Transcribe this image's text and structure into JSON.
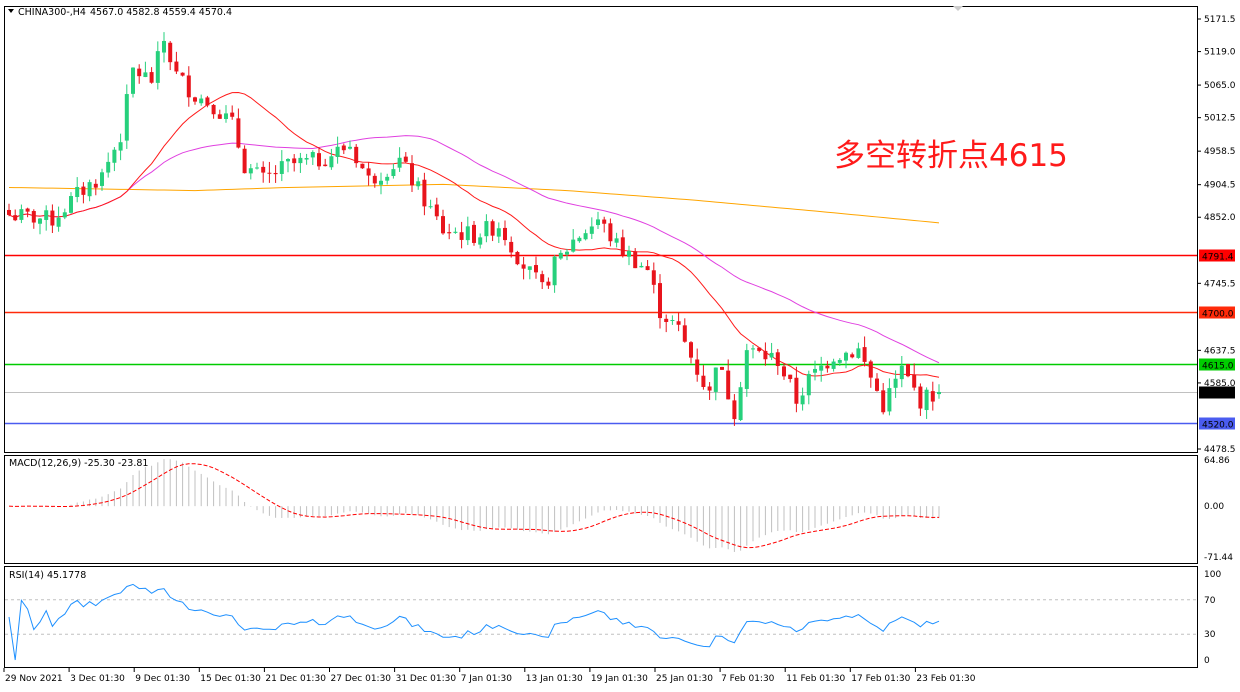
{
  "header": {
    "symbol_label": "CHINA300-,H4",
    "ohlc": "4567.0 4582.8 4559.4 4570.4",
    "menu_icon": "triangle-down-icon"
  },
  "annotation": "多空转折点4615",
  "price_axis": {
    "ticks": [
      "5171.5",
      "5119.0",
      "5065.0",
      "5012.5",
      "4958.5",
      "4904.5",
      "4852.0",
      "4745.5",
      "4637.5",
      "4585.0",
      "4478.5"
    ],
    "tick_values": [
      5171.5,
      5119.0,
      5065.0,
      5012.5,
      4958.5,
      4904.5,
      4852.0,
      4745.5,
      4637.5,
      4585.0,
      4478.5
    ]
  },
  "levels": [
    {
      "value": 4791.4,
      "label": "4791.4",
      "color": "#ff0000"
    },
    {
      "value": 4700.0,
      "label": "4700.0",
      "color": "#ff2a0a"
    },
    {
      "value": 4615.0,
      "label": "4615.0",
      "color": "#00cc00"
    },
    {
      "value": 4570.4,
      "label": "4570.4",
      "color": "#c0c0c0",
      "tag_color": "#000000"
    },
    {
      "value": 4520.0,
      "label": "4520.0",
      "color": "#4a5cf0"
    }
  ],
  "chart_data": {
    "type": "candlestick",
    "bars": 151,
    "close_path": [
      [
        0,
        4856
      ],
      [
        7,
        4848
      ],
      [
        11,
        4888
      ],
      [
        15,
        4920
      ],
      [
        18,
        4984
      ],
      [
        20,
        5089
      ],
      [
        23,
        5073
      ],
      [
        25,
        5137
      ],
      [
        27,
        5081
      ],
      [
        30,
        5049
      ],
      [
        33,
        5033
      ],
      [
        36,
        5001
      ],
      [
        38,
        4936
      ],
      [
        41,
        4912
      ],
      [
        45,
        4936
      ],
      [
        50,
        4944
      ],
      [
        55,
        4968
      ],
      [
        58,
        4912
      ],
      [
        63,
        4944
      ],
      [
        66,
        4896
      ],
      [
        70,
        4831
      ],
      [
        75,
        4823
      ],
      [
        79,
        4840
      ],
      [
        83,
        4775
      ],
      [
        86,
        4735
      ],
      [
        88,
        4775
      ],
      [
        91,
        4815
      ],
      [
        95,
        4848
      ],
      [
        98,
        4807
      ],
      [
        100,
        4791
      ],
      [
        103,
        4767
      ],
      [
        105,
        4702
      ],
      [
        108,
        4670
      ],
      [
        111,
        4606
      ],
      [
        113,
        4566
      ],
      [
        114,
        4622
      ],
      [
        117,
        4541
      ],
      [
        119,
        4638
      ],
      [
        124,
        4622
      ],
      [
        127,
        4557
      ],
      [
        129,
        4590
      ],
      [
        133,
        4630
      ],
      [
        137,
        4638
      ],
      [
        141,
        4549
      ],
      [
        144,
        4606
      ],
      [
        147,
        4557
      ],
      [
        150,
        4570.4
      ]
    ],
    "up_color": "#26d07c",
    "down_color": "#e8141c",
    "ma_colors": {
      "fast": "#ff1a1a",
      "mid": "#e040e0",
      "slow": "#ffa500"
    },
    "slow_ma_path": [
      [
        0,
        4900
      ],
      [
        30,
        4895
      ],
      [
        45,
        4900
      ],
      [
        70,
        4905
      ],
      [
        90,
        4895
      ],
      [
        110,
        4880
      ],
      [
        130,
        4862
      ],
      [
        150,
        4843
      ]
    ],
    "x_ticks": [
      "29 Nov 2021",
      "3 Dec 01:30",
      "9 Dec 01:30",
      "15 Dec 01:30",
      "21 Dec 01:30",
      "27 Dec 01:30",
      "31 Dec 01:30",
      "7 Jan 01:30",
      "13 Jan 01:30",
      "19 Jan 01:30",
      "25 Jan 01:30",
      "7 Feb 01:30",
      "11 Feb 01:30",
      "17 Feb 01:30",
      "23 Feb 01:30"
    ]
  },
  "macd": {
    "label": "MACD(12,26,9) -25.30 -23.81",
    "ticks": [
      "64.86",
      "0.00",
      "-71.44"
    ],
    "max": 64.86,
    "min": -71.44,
    "hist_color": "#c0c0c0",
    "signal_color": "#ff0000"
  },
  "rsi": {
    "label": "RSI(14) 45.1778",
    "ticks": [
      "100",
      "70",
      "30",
      "0"
    ],
    "line_color": "#1e90ff",
    "level_color": "#c0c0c0"
  }
}
